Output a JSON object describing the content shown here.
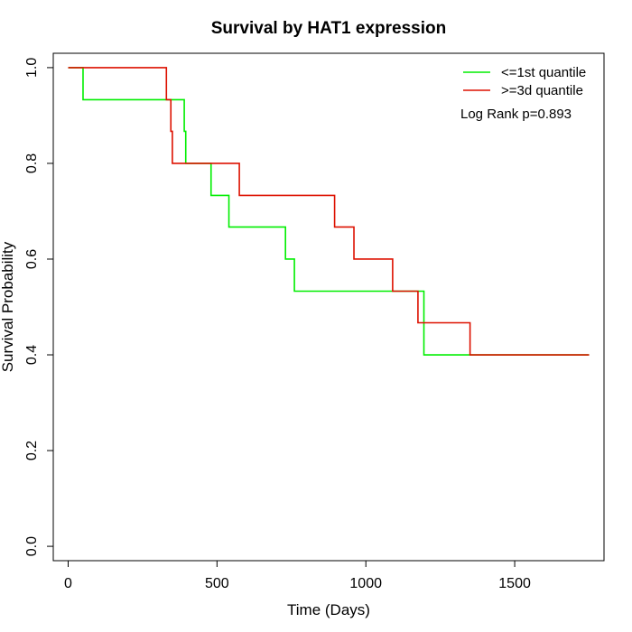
{
  "chart_data": {
    "type": "line",
    "title": "Survival by HAT1 expression",
    "xlabel": "Time (Days)",
    "ylabel": "Survival Probability",
    "xlim": [
      -50,
      1800
    ],
    "ylim": [
      -0.03,
      1.03
    ],
    "xticks": [
      0,
      500,
      1000,
      1500
    ],
    "xtick_labels": [
      "0",
      "500",
      "1000",
      "1500"
    ],
    "yticks": [
      0,
      0.2,
      0.4,
      0.6,
      0.8,
      1.0
    ],
    "ytick_labels": [
      "0.0",
      "0.2",
      "0.4",
      "0.6",
      "0.8",
      "1.0"
    ],
    "legend_position": "top-right",
    "annotation": "Log Rank p=0.893",
    "step": true,
    "series": [
      {
        "name": "<=1st quantile",
        "color": "#00ee00",
        "x": [
          0,
          50,
          390,
          395,
          480,
          540,
          730,
          760,
          1195,
          1750
        ],
        "y": [
          1.0,
          0.933,
          0.867,
          0.8,
          0.733,
          0.667,
          0.6,
          0.533,
          0.4,
          0.4
        ]
      },
      {
        "name": ">=3d quantile",
        "color": "#dd1100",
        "x": [
          0,
          330,
          345,
          350,
          575,
          895,
          960,
          1090,
          1175,
          1350,
          1750
        ],
        "y": [
          1.0,
          0.933,
          0.867,
          0.8,
          0.733,
          0.667,
          0.6,
          0.533,
          0.467,
          0.4,
          0.4
        ]
      }
    ]
  }
}
